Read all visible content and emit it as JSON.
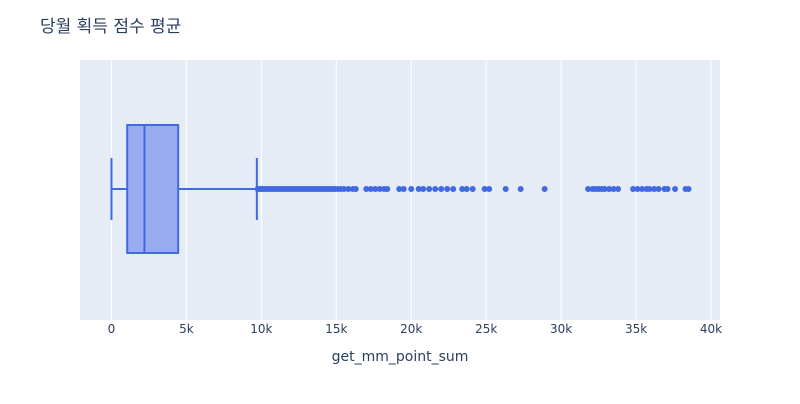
{
  "chart_data": {
    "type": "box",
    "title": "당월 획득 점수 평균",
    "xlabel": "get_mm_point_sum",
    "ylabel": "",
    "xlim": [
      -2100,
      40600
    ],
    "x_ticks": [
      0,
      5000,
      10000,
      15000,
      20000,
      25000,
      30000,
      35000,
      40000
    ],
    "x_tick_labels": [
      "0",
      "5k",
      "10k",
      "15k",
      "20k",
      "25k",
      "30k",
      "35k",
      "40k"
    ],
    "grid": true,
    "orientation": "horizontal",
    "box": {
      "min": 0,
      "q1": 1050,
      "median": 2200,
      "q3": 4450,
      "upper_fence": 9700
    },
    "outliers": [
      9750,
      9850,
      9950,
      10100,
      10250,
      10400,
      10550,
      10700,
      10850,
      11000,
      11150,
      11300,
      11450,
      11600,
      11750,
      11900,
      12050,
      12200,
      12350,
      12500,
      12650,
      12800,
      12950,
      13100,
      13250,
      13400,
      13550,
      13700,
      13850,
      14000,
      14150,
      14300,
      14450,
      14600,
      14750,
      14900,
      15100,
      15300,
      15500,
      15800,
      16100,
      16300,
      17000,
      17300,
      17600,
      17900,
      18200,
      18400,
      19200,
      19500,
      20000,
      20500,
      20800,
      21200,
      21600,
      22000,
      22400,
      22800,
      23400,
      23700,
      24100,
      24900,
      25200,
      26300,
      27300,
      28900,
      31800,
      32100,
      32300,
      32500,
      32700,
      32900,
      33200,
      33500,
      33800,
      34800,
      35100,
      35400,
      35700,
      35900,
      36200,
      36500,
      36900,
      37100,
      37600,
      38300,
      38500
    ],
    "colors": {
      "box_line": "#4169e1",
      "box_fill": "#99acf0",
      "plot_bg": "#e5ecf6",
      "grid": "#ffffff"
    }
  }
}
